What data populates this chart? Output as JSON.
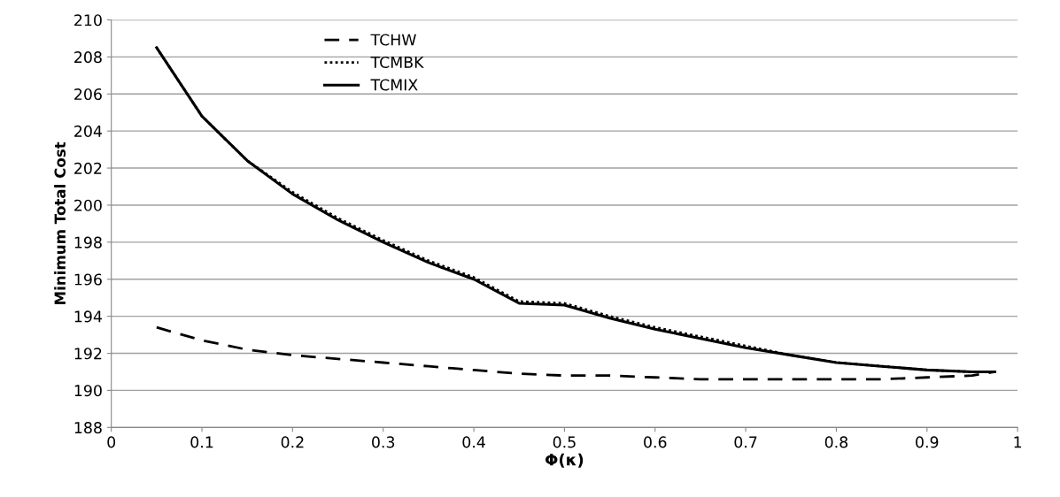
{
  "chart_data": {
    "type": "line",
    "xlabel": "Φ(κ)",
    "ylabel": "Minimum Total Cost",
    "x": [
      0.05,
      0.1,
      0.15,
      0.2,
      0.25,
      0.3,
      0.35,
      0.4,
      0.45,
      0.5,
      0.55,
      0.6,
      0.65,
      0.7,
      0.75,
      0.8,
      0.85,
      0.9,
      0.95,
      0.975
    ],
    "series": [
      {
        "name": "TCHW",
        "color": "#000000",
        "line_style": "dashed",
        "values": [
          193.4,
          192.7,
          192.2,
          191.9,
          191.7,
          191.5,
          191.3,
          191.1,
          190.9,
          190.8,
          190.8,
          190.7,
          190.6,
          190.6,
          190.6,
          190.6,
          190.6,
          190.7,
          190.8,
          191.0
        ]
      },
      {
        "name": "TCMBK",
        "color": "#000000",
        "line_style": "dotted",
        "values": [
          208.5,
          204.8,
          202.4,
          200.7,
          199.3,
          198.1,
          197.0,
          196.1,
          194.8,
          194.7,
          194.0,
          193.4,
          192.9,
          192.4,
          191.9,
          191.5,
          191.3,
          191.1,
          191.0,
          191.0
        ]
      },
      {
        "name": "TCMIX",
        "color": "#000000",
        "line_style": "solid",
        "values": [
          208.5,
          204.8,
          202.4,
          200.6,
          199.2,
          198.0,
          196.9,
          196.0,
          194.7,
          194.6,
          193.9,
          193.3,
          192.8,
          192.3,
          191.9,
          191.5,
          191.3,
          191.1,
          191.0,
          191.0
        ]
      }
    ],
    "xlim": [
      0,
      1
    ],
    "xticks": [
      0,
      0.1,
      0.2,
      0.3,
      0.4,
      0.5,
      0.6,
      0.7,
      0.8,
      0.9,
      1
    ],
    "ylim": [
      188,
      210
    ],
    "yticks": [
      188,
      190,
      192,
      194,
      196,
      198,
      200,
      202,
      204,
      206,
      208,
      210
    ],
    "grid": "y",
    "legend": "top left"
  }
}
